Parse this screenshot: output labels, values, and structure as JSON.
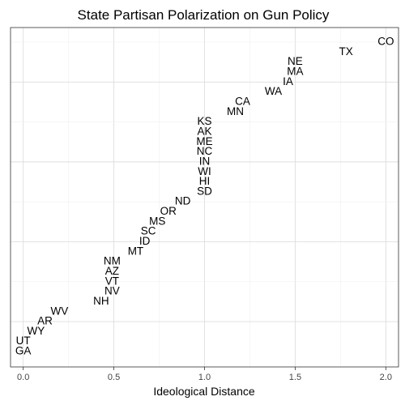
{
  "chart_data": {
    "type": "scatter",
    "title": "State Partisan Polarization on Gun Policy",
    "xlabel": "Ideological Distance",
    "ylabel": "",
    "xlim": [
      -0.07,
      2.07
    ],
    "x_ticks": [
      0.0,
      0.5,
      1.0,
      1.5,
      2.0
    ],
    "x_tick_labels": [
      "0.0",
      "0.5",
      "1.0",
      "1.5",
      "2.0"
    ],
    "grid": true,
    "legend": "none",
    "points_bottom_to_top": [
      {
        "label": "GA",
        "x": 0.0
      },
      {
        "label": "UT",
        "x": 0.0
      },
      {
        "label": "WY",
        "x": 0.07
      },
      {
        "label": "AR",
        "x": 0.12
      },
      {
        "label": "WV",
        "x": 0.2
      },
      {
        "label": "NH",
        "x": 0.43
      },
      {
        "label": "NV",
        "x": 0.49
      },
      {
        "label": "VT",
        "x": 0.49
      },
      {
        "label": "AZ",
        "x": 0.49
      },
      {
        "label": "NM",
        "x": 0.49
      },
      {
        "label": "MT",
        "x": 0.62
      },
      {
        "label": "ID",
        "x": 0.67
      },
      {
        "label": "SC",
        "x": 0.69
      },
      {
        "label": "MS",
        "x": 0.74
      },
      {
        "label": "OR",
        "x": 0.8
      },
      {
        "label": "ND",
        "x": 0.88
      },
      {
        "label": "SD",
        "x": 1.0
      },
      {
        "label": "HI",
        "x": 1.0
      },
      {
        "label": "WI",
        "x": 1.0
      },
      {
        "label": "IN",
        "x": 1.0
      },
      {
        "label": "NC",
        "x": 1.0
      },
      {
        "label": "ME",
        "x": 1.0
      },
      {
        "label": "AK",
        "x": 1.0
      },
      {
        "label": "KS",
        "x": 1.0
      },
      {
        "label": "MN",
        "x": 1.17
      },
      {
        "label": "CA",
        "x": 1.21
      },
      {
        "label": "WA",
        "x": 1.38
      },
      {
        "label": "IA",
        "x": 1.46
      },
      {
        "label": "MA",
        "x": 1.5
      },
      {
        "label": "NE",
        "x": 1.5
      },
      {
        "label": "TX",
        "x": 1.78
      },
      {
        "label": "CO",
        "x": 2.0
      }
    ]
  }
}
